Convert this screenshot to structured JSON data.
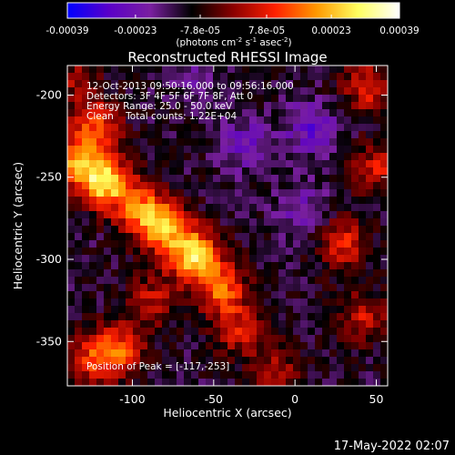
{
  "colorbar": {
    "tick_labels": [
      "-0.00039",
      "-0.00023",
      "-7.8e-05",
      "7.8e-05",
      "0.00023",
      "0.00039"
    ],
    "tick_values": [
      -0.00039,
      -0.00023,
      -7.8e-05,
      7.8e-05,
      0.00023,
      0.00039
    ],
    "range": [
      -0.00039,
      0.00039
    ],
    "unit_text": "(photons cm",
    "unit_exp1": "-2",
    "unit_mid": " s",
    "unit_exp2": "-1",
    "unit_tail": " asec",
    "unit_exp3": "-2",
    "unit_close": ")",
    "colors": [
      "#0000ff",
      "#5a00c8",
      "#7a1fa0",
      "#000000",
      "#8b0000",
      "#ff2000",
      "#ff9800",
      "#ffff60",
      "#ffffff"
    ]
  },
  "chart_data": {
    "type": "heatmap",
    "title": "Reconstructed RHESSI Image",
    "xlabel": "Heliocentric X (arcsec)",
    "ylabel": "Heliocentric Y (arcsec)",
    "xlim": [
      -140,
      57
    ],
    "ylim": [
      -377,
      -182
    ],
    "xticks": [
      -100,
      -50,
      0,
      50
    ],
    "yticks": [
      -200,
      -250,
      -300,
      -350
    ],
    "xtick_labels": [
      "-100",
      "-50",
      "0",
      "50"
    ],
    "ytick_labels": [
      "-200",
      "-250",
      "-300",
      "-350"
    ],
    "peak_position": [
      -117,
      -253
    ],
    "sources": [
      {
        "x": -117,
        "y": -253,
        "amp": 0.00039
      },
      {
        "x": -122,
        "y": -218,
        "amp": 0.00022
      },
      {
        "x": -135,
        "y": -240,
        "amp": 0.00028
      },
      {
        "x": -62,
        "y": -298,
        "amp": 0.00038
      },
      {
        "x": -80,
        "y": -280,
        "amp": 0.0003
      },
      {
        "x": -95,
        "y": -270,
        "amp": 0.00024
      },
      {
        "x": -45,
        "y": -318,
        "amp": 0.00025
      },
      {
        "x": -35,
        "y": -343,
        "amp": 0.00018
      },
      {
        "x": -108,
        "y": -355,
        "amp": 0.00022
      },
      {
        "x": -125,
        "y": -362,
        "amp": 0.0002
      },
      {
        "x": -88,
        "y": -325,
        "amp": 0.00016
      },
      {
        "x": 45,
        "y": -195,
        "amp": 0.0002
      },
      {
        "x": 50,
        "y": -245,
        "amp": 0.00017
      },
      {
        "x": 30,
        "y": -290,
        "amp": 0.0002
      },
      {
        "x": 42,
        "y": -335,
        "amp": 0.00016
      },
      {
        "x": -12,
        "y": -367,
        "amp": 0.00014
      },
      {
        "x": -135,
        "y": -190,
        "amp": 0.00012
      },
      {
        "x": -30,
        "y": -230,
        "amp": -0.00012
      },
      {
        "x": 5,
        "y": -270,
        "amp": -0.0001
      },
      {
        "x": -60,
        "y": -190,
        "amp": -6e-05
      },
      {
        "x": 10,
        "y": -220,
        "amp": -0.00014
      }
    ]
  },
  "annotations": {
    "time_range": "12-Oct-2013 09:50:16.000 to 09:56:16.000",
    "detectors": "Detectors: 3F 4F 5F 6F 7F 8F, Att 0",
    "energy": "Energy Range: 25.0 - 50.0 keV",
    "method": "Clean    Total counts: 1.22E+04",
    "peak_label": "Position of Peak = [-117,-253]"
  },
  "timestamp": "17-May-2022 02:07"
}
